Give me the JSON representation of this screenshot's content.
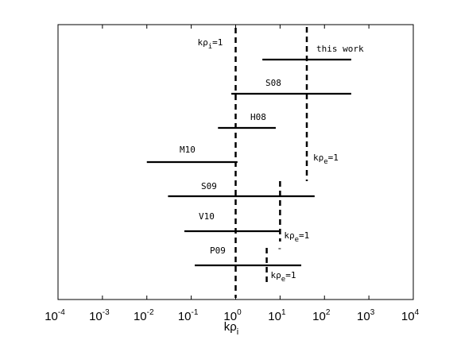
{
  "chart_data": {
    "type": "range",
    "xscale": "log",
    "xlim": [
      0.0001,
      10000
    ],
    "xlabel": "kρi",
    "xticks": [
      {
        "base": "10",
        "exp": "-4",
        "value": 0.0001
      },
      {
        "base": "10",
        "exp": "-3",
        "value": 0.001
      },
      {
        "base": "10",
        "exp": "-2",
        "value": 0.01
      },
      {
        "base": "10",
        "exp": "-1",
        "value": 0.1
      },
      {
        "base": "10",
        "exp": "0",
        "value": 1
      },
      {
        "base": "10",
        "exp": "1",
        "value": 10
      },
      {
        "base": "10",
        "exp": "2",
        "value": 100
      },
      {
        "base": "10",
        "exp": "3",
        "value": 1000
      },
      {
        "base": "10",
        "exp": "4",
        "value": 10000
      }
    ],
    "series": [
      {
        "name": "this work",
        "xmin": 4,
        "xmax": 400,
        "kpe1": 40
      },
      {
        "name": "S08",
        "xmin": 0.8,
        "xmax": 400,
        "kpe1": 40
      },
      {
        "name": "H08",
        "xmin": 0.4,
        "xmax": 8,
        "kpe1": 40
      },
      {
        "name": "M10",
        "xmin": 0.01,
        "xmax": 1.1,
        "kpe1": 40
      },
      {
        "name": "S09",
        "xmin": 0.03,
        "xmax": 60,
        "kpe1": 10
      },
      {
        "name": "V10",
        "xmin": 0.07,
        "xmax": 10,
        "kpe1": 10
      },
      {
        "name": "P09",
        "xmin": 0.12,
        "xmax": 30,
        "kpe1": 5
      }
    ],
    "reference_lines": [
      {
        "label": "kρi=1",
        "x": 1
      },
      {
        "label": "kρe=1",
        "x": 40
      },
      {
        "label": "kρe=1",
        "x": 10
      },
      {
        "label": "kρe=1",
        "x": 5
      }
    ]
  }
}
